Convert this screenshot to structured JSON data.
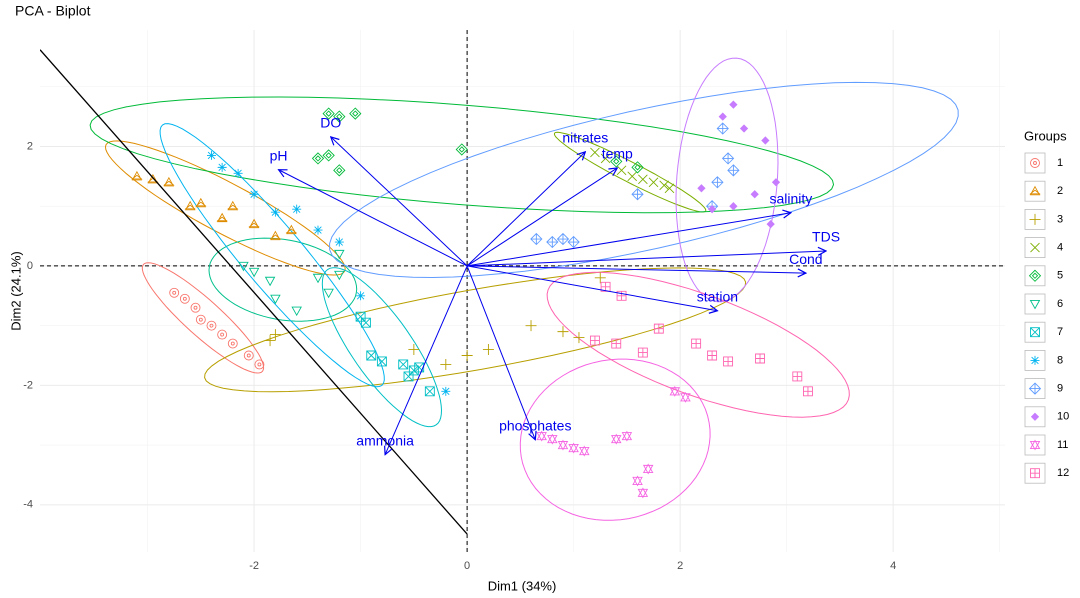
{
  "chart_data": {
    "type": "biplot",
    "title": "PCA - Biplot",
    "x_label": "Dim1 (34%)",
    "y_label": "Dim2 (24.1%)",
    "xlim": [
      -4.01,
      5.05
    ],
    "ylim": [
      -4.79,
      3.95
    ],
    "xticks": [
      -2,
      0,
      2,
      4
    ],
    "yticks": [
      -4,
      -2,
      0,
      2
    ],
    "grid": true,
    "ref_lines": {
      "x": 0,
      "y": 0
    },
    "legend_title": "Groups",
    "legend_position": "right",
    "series": [
      {
        "name": "1",
        "color": "#F8766D",
        "shape": "circle-dot",
        "x": [
          -2.75,
          -2.65,
          -2.55,
          -2.5,
          -2.4,
          -2.3,
          -2.2,
          -2.05,
          -1.95
        ],
        "y": [
          -0.45,
          -0.55,
          -0.7,
          -0.9,
          -1.0,
          -1.15,
          -1.3,
          -1.5,
          -1.65
        ],
        "ellipse": {
          "center": [
            -2.48,
            -0.87
          ],
          "axis1": [
            0.558,
            -0.896
          ],
          "axis2": [
            -0.113,
            -0.224
          ]
        }
      },
      {
        "name": "2",
        "color": "#DE8C00",
        "shape": "triangle",
        "x": [
          -3.1,
          -2.95,
          -2.8,
          -2.6,
          -2.5,
          -2.3,
          -2.2,
          -2.0,
          -1.8,
          -1.65
        ],
        "y": [
          1.5,
          1.45,
          1.4,
          1.0,
          1.05,
          0.8,
          1.0,
          0.7,
          0.5,
          0.6
        ],
        "ellipse": {
          "center": [
            -2.27,
            0.97
          ],
          "axis1": [
            1.12,
            -1.06
          ],
          "axis2": [
            -0.11,
            -0.37
          ]
        }
      },
      {
        "name": "3",
        "color": "#B79F00",
        "shape": "plus",
        "x": [
          -1.85,
          -1.8,
          -0.5,
          -0.2,
          0,
          0.2,
          0.6,
          0.9,
          1.05,
          1.25
        ],
        "y": [
          -1.25,
          -1.15,
          -1.4,
          -1.65,
          -1.5,
          -1.4,
          -1.0,
          -1.1,
          -1.2,
          -0.2
        ],
        "ellipse": {
          "center": [
            0.075,
            -1.07
          ],
          "axis1": [
            2.54,
            0.8
          ],
          "axis2": [
            0.065,
            -0.66
          ]
        }
      },
      {
        "name": "4",
        "color": "#7CAE00",
        "shape": "cross",
        "x": [
          1.2,
          1.3,
          1.45,
          1.55,
          1.65,
          1.75,
          1.85,
          1.9
        ],
        "y": [
          1.9,
          1.8,
          1.6,
          1.5,
          1.45,
          1.4,
          1.35,
          1.3
        ],
        "ellipse": {
          "center": [
            1.53,
            1.57
          ],
          "axis1": [
            0.71,
            -0.65
          ],
          "axis2": [
            -0.04,
            -0.15
          ]
        }
      },
      {
        "name": "5",
        "color": "#00BA38",
        "shape": "diamond",
        "x": [
          -1.3,
          -1.2,
          -1.05,
          -1.4,
          -1.3,
          -1.2,
          -0.05,
          1.4,
          1.6
        ],
        "y": [
          2.55,
          2.5,
          2.55,
          1.8,
          1.85,
          1.6,
          1.95,
          1.75,
          1.65
        ],
        "ellipse": {
          "center": [
            -0.05,
            1.86
          ],
          "axis1": [
            3.49,
            -0.5
          ],
          "axis2": [
            -0.04,
            -0.83
          ]
        }
      },
      {
        "name": "6",
        "color": "#00C08B",
        "shape": "down-triangle",
        "x": [
          -2.1,
          -2.0,
          -1.85,
          -1.8,
          -1.6,
          -1.4,
          -1.2,
          -1.2,
          -1.3
        ],
        "y": [
          0,
          -0.1,
          -0.25,
          -0.55,
          -0.75,
          -0.2,
          0.2,
          -0.15,
          -0.45
        ],
        "ellipse": {
          "center": [
            -1.73,
            -0.23
          ],
          "axis1": [
            0.69,
            -0.22
          ],
          "axis2": [
            -0.065,
            -0.66
          ]
        }
      },
      {
        "name": "7",
        "color": "#00BFC4",
        "shape": "square-x",
        "x": [
          -1.0,
          -0.95,
          -0.9,
          -0.8,
          -0.6,
          -0.55,
          -0.5,
          -0.35,
          -0.45
        ],
        "y": [
          -0.85,
          -0.95,
          -1.5,
          -1.6,
          -1.65,
          -1.85,
          -1.75,
          -2.1,
          -1.7
        ],
        "ellipse": {
          "center": [
            -0.8,
            -1.36
          ],
          "axis1": [
            0.51,
            -1.3
          ],
          "axis2": [
            -0.23,
            -0.29
          ]
        }
      },
      {
        "name": "8",
        "color": "#00B4F0",
        "shape": "asterisk",
        "x": [
          -2.4,
          -2.3,
          -2.15,
          -2.0,
          -1.8,
          -1.6,
          -1.4,
          -1.2,
          -1.0,
          -0.2
        ],
        "y": [
          1.85,
          1.65,
          1.55,
          1.2,
          0.9,
          0.95,
          0.6,
          0.4,
          -0.5,
          -2.1
        ],
        "ellipse": {
          "center": [
            -1.83,
            0.18
          ],
          "axis1": [
            1.03,
            -2.18
          ],
          "axis2": [
            -0.22,
            -0.32
          ]
        }
      },
      {
        "name": "9",
        "color": "#619CFF",
        "shape": "diamond-plus",
        "x": [
          0.65,
          0.8,
          0.9,
          1.0,
          1.6,
          2.3,
          2.35,
          2.4,
          2.45,
          2.5
        ],
        "y": [
          0.45,
          0.4,
          0.45,
          0.4,
          1.2,
          1.0,
          1.4,
          2.3,
          1.8,
          1.6
        ],
        "ellipse": {
          "center": [
            1.66,
            1.44
          ],
          "axis1": [
            2.95,
            1.17
          ],
          "axis2": [
            0.14,
            -1.14
          ]
        }
      },
      {
        "name": "10",
        "color": "#C77CFF",
        "shape": "filled-diamond",
        "x": [
          2.2,
          2.4,
          2.5,
          2.6,
          2.5,
          2.7,
          2.8,
          2.9,
          2.85,
          2.3
        ],
        "y": [
          1.3,
          2.5,
          2.7,
          2.3,
          1.0,
          1.2,
          2.1,
          1.4,
          0.7,
          0.95
        ],
        "ellipse": {
          "center": [
            2.44,
            1.44
          ],
          "axis1": [
            0.09,
            2.04
          ],
          "axis2": [
            0.47,
            -0.07
          ]
        }
      },
      {
        "name": "11",
        "color": "#F564E3",
        "shape": "star",
        "x": [
          0.7,
          0.8,
          0.9,
          1.0,
          1.1,
          1.4,
          1.6,
          1.65,
          1.5,
          1.95,
          2.05,
          1.7
        ],
        "y": [
          -2.85,
          -2.9,
          -3.0,
          -3.05,
          -3.1,
          -2.9,
          -3.6,
          -3.8,
          -2.85,
          -2.1,
          -2.2,
          -3.4
        ],
        "ellipse": {
          "center": [
            1.39,
            -2.91
          ],
          "axis1": [
            0.89,
            0.17
          ],
          "axis2": [
            0.05,
            -1.34
          ]
        }
      },
      {
        "name": "12",
        "color": "#FF64B0",
        "shape": "square-plus",
        "x": [
          1.3,
          1.45,
          1.2,
          1.4,
          1.65,
          1.8,
          2.15,
          2.3,
          2.45,
          2.75,
          3.1,
          3.2
        ],
        "y": [
          -0.35,
          -0.5,
          -1.25,
          -1.3,
          -1.45,
          -1.05,
          -1.3,
          -1.5,
          -1.6,
          -1.55,
          -1.85,
          -2.1
        ],
        "ellipse": {
          "center": [
            2.17,
            -1.32
          ],
          "axis1": [
            1.41,
            -0.92
          ],
          "axis2": [
            -0.16,
            -0.79
          ]
        }
      }
    ],
    "arrows": {
      "color": "#0000EE",
      "names": [
        "DO",
        "pH",
        "nitrates",
        "temp",
        "salinity",
        "TDS",
        "Cond",
        "station",
        "phosphates",
        "ammonia"
      ],
      "x": [
        -1.28,
        -1.77,
        1.11,
        1.41,
        3.04,
        3.37,
        3.18,
        2.35,
        0.64,
        -0.77
      ],
      "y": [
        2.16,
        1.61,
        1.91,
        1.64,
        0.89,
        0.25,
        -0.12,
        -0.75,
        -2.91,
        -3.16
      ]
    },
    "line": {
      "color": "#000000",
      "x": [
        -4.01,
        0
      ],
      "y": [
        3.62,
        -4.49
      ]
    }
  }
}
